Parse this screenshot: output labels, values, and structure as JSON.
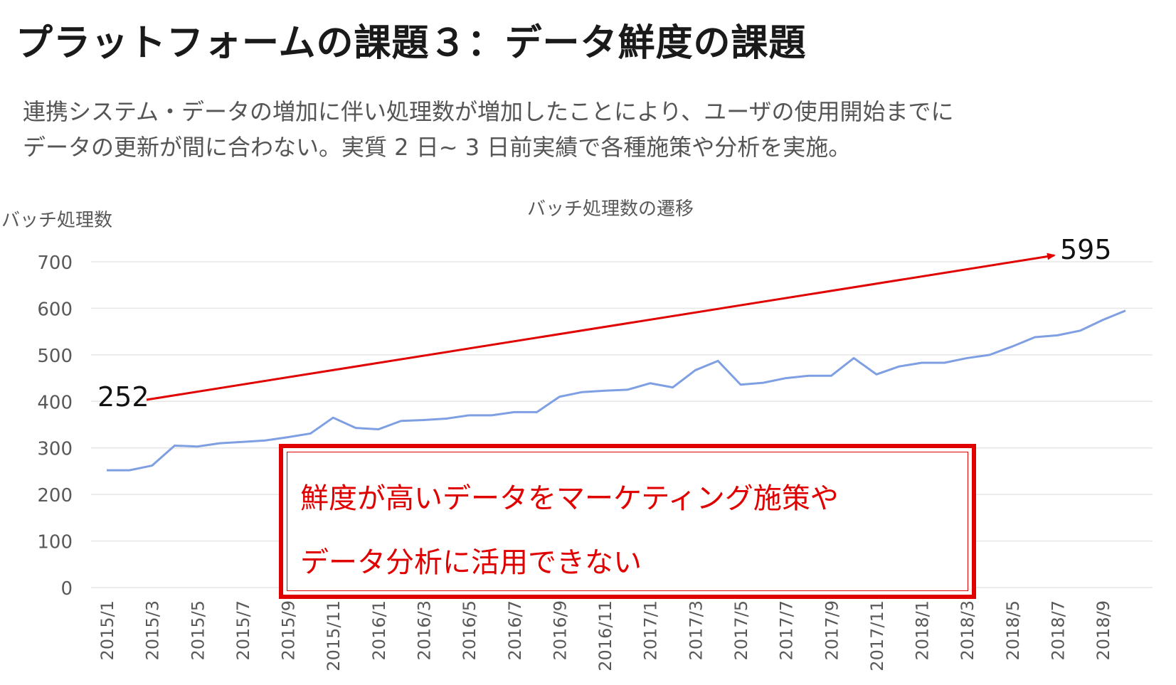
{
  "slide": {
    "title": "プラットフォームの課題３：データ鮮度の課題",
    "subtitle_lines": [
      "連携システム・データの増加に伴い処理数が増加したことにより、ユーザの使用開始までに",
      "データの更新が間に合わない。実質 2 日~ 3 日前実績で各種施策や分析を実施。"
    ]
  },
  "callout": {
    "line1": "鮮度が高いデータをマーケティング施策や",
    "line2": "データ分析に活用できない"
  },
  "colors": {
    "series": "#7f9fe3",
    "trend": "#e00000",
    "grid": "#e6e6e6",
    "axis_text": "#595959"
  },
  "chart_data": {
    "type": "line",
    "title": "バッチ処理数の遷移",
    "ylabel": "バッチ処理数",
    "xlabel": "",
    "ylim": [
      0,
      700
    ],
    "yticks": [
      0,
      100,
      200,
      300,
      400,
      500,
      600,
      700
    ],
    "grid": true,
    "x": [
      "2015/1",
      "2015/2",
      "2015/3",
      "2015/4",
      "2015/5",
      "2015/6",
      "2015/7",
      "2015/8",
      "2015/9",
      "2015/10",
      "2015/11",
      "2015/12",
      "2016/1",
      "2016/2",
      "2016/3",
      "2016/4",
      "2016/5",
      "2016/6",
      "2016/7",
      "2016/8",
      "2016/9",
      "2016/10",
      "2016/11",
      "2016/12",
      "2017/1",
      "2017/2",
      "2017/3",
      "2017/4",
      "2017/5",
      "2017/6",
      "2017/7",
      "2017/8",
      "2017/9",
      "2017/10",
      "2017/11",
      "2017/12",
      "2018/1",
      "2018/2",
      "2018/3",
      "2018/4",
      "2018/5",
      "2018/6",
      "2018/7",
      "2018/8",
      "2018/9",
      "2018/10"
    ],
    "x_tick_labels": [
      "2015/1",
      "2015/3",
      "2015/5",
      "2015/7",
      "2015/9",
      "2015/11",
      "2016/1",
      "2016/3",
      "2016/5",
      "2016/7",
      "2016/9",
      "2016/11",
      "2017/1",
      "2017/3",
      "2017/5",
      "2017/7",
      "2017/9",
      "2017/11",
      "2018/1",
      "2018/3",
      "2018/5",
      "2018/7",
      "2018/9"
    ],
    "series": [
      {
        "name": "バッチ処理数",
        "values": [
          252,
          252,
          262,
          305,
          303,
          310,
          313,
          316,
          323,
          331,
          365,
          343,
          340,
          358,
          360,
          363,
          370,
          370,
          377,
          377,
          410,
          420,
          423,
          425,
          439,
          430,
          467,
          487,
          436,
          440,
          450,
          455,
          455,
          493,
          458,
          475,
          483,
          483,
          493,
          500,
          518,
          538,
          542,
          552,
          575,
          595
        ]
      }
    ],
    "annotations": [
      {
        "label": "252",
        "value": 252,
        "x": "2015/1"
      },
      {
        "label": "595",
        "value": 595,
        "x": "2018/10"
      }
    ],
    "trend_arrow": {
      "from": "252",
      "to": "595"
    }
  }
}
